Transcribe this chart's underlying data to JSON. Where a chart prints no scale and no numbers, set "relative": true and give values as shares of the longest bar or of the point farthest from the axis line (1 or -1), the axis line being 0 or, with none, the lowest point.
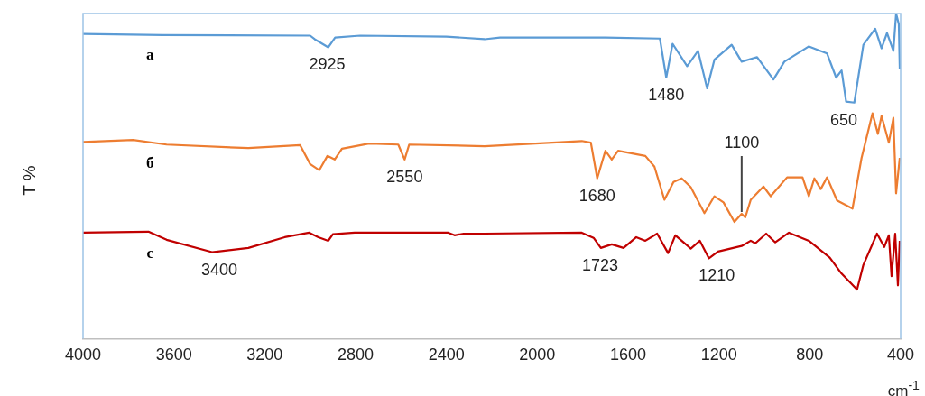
{
  "chart_data": {
    "type": "line",
    "relative": true,
    "xlabel": "cm$^{-1}$",
    "ylabel": "T %",
    "xlim": [
      4000,
      400
    ],
    "xticks": [
      4000,
      3600,
      3200,
      2800,
      2400,
      2000,
      1600,
      1200,
      800,
      400
    ],
    "grid": false,
    "legend": false,
    "marker": "none",
    "line_style": "solid",
    "series": [
      {
        "name": "a",
        "color": "#5b9bd5",
        "x": [
          4000,
          3650,
          3000,
          2980,
          2920,
          2890,
          2780,
          2400,
          2232,
          2164,
          1700,
          1460,
          1432,
          1404,
          1340,
          1292,
          1252,
          1220,
          1144,
          1100,
          1032,
          960,
          912,
          804,
          724,
          684,
          660,
          640,
          604,
          564,
          512,
          484,
          460,
          432,
          420,
          408,
          404
        ],
        "values": [
          0.937,
          0.934,
          0.932,
          0.921,
          0.896,
          0.926,
          0.932,
          0.929,
          0.921,
          0.926,
          0.926,
          0.923,
          0.803,
          0.907,
          0.838,
          0.885,
          0.77,
          0.858,
          0.904,
          0.852,
          0.866,
          0.797,
          0.852,
          0.899,
          0.877,
          0.803,
          0.825,
          0.729,
          0.726,
          0.904,
          0.953,
          0.893,
          0.94,
          0.885,
          1,
          0.967,
          0.83
        ]
      },
      {
        "name": "б",
        "color": "#ed7d31",
        "x": [
          4000,
          3780,
          3632,
          3272,
          3044,
          3000,
          2960,
          2924,
          2892,
          2860,
          2740,
          2612,
          2584,
          2564,
          2232,
          1804,
          1764,
          1736,
          1700,
          1672,
          1644,
          1524,
          1484,
          1440,
          1400,
          1364,
          1324,
          1264,
          1220,
          1180,
          1132,
          1100,
          1084,
          1060,
          1004,
          972,
          900,
          832,
          804,
          780,
          752,
          724,
          680,
          612,
          572,
          524,
          500,
          484,
          452,
          432,
          420,
          404
        ],
        "values": [
          0.605,
          0.611,
          0.597,
          0.586,
          0.595,
          0.537,
          0.518,
          0.562,
          0.551,
          0.584,
          0.6,
          0.597,
          0.551,
          0.597,
          0.592,
          0.608,
          0.603,
          0.493,
          0.578,
          0.551,
          0.578,
          0.562,
          0.529,
          0.427,
          0.482,
          0.493,
          0.466,
          0.386,
          0.438,
          0.419,
          0.359,
          0.384,
          0.373,
          0.427,
          0.468,
          0.438,
          0.496,
          0.496,
          0.438,
          0.493,
          0.46,
          0.496,
          0.425,
          0.4,
          0.556,
          0.693,
          0.63,
          0.685,
          0.603,
          0.679,
          0.447,
          0.556
        ]
      },
      {
        "name": "c",
        "color": "#c00000",
        "x": [
          4000,
          3712,
          3632,
          3432,
          3272,
          3112,
          3004,
          2964,
          2920,
          2900,
          2804,
          2392,
          2364,
          2324,
          2232,
          1804,
          1752,
          1720,
          1672,
          1620,
          1564,
          1524,
          1472,
          1424,
          1392,
          1324,
          1284,
          1244,
          1204,
          1100,
          1060,
          1040,
          992,
          952,
          892,
          804,
          712,
          660,
          592,
          564,
          504,
          472,
          452,
          440,
          424,
          412,
          404
        ],
        "values": [
          0.326,
          0.329,
          0.304,
          0.266,
          0.279,
          0.312,
          0.326,
          0.312,
          0.301,
          0.321,
          0.326,
          0.326,
          0.318,
          0.323,
          0.323,
          0.326,
          0.31,
          0.279,
          0.29,
          0.279,
          0.312,
          0.301,
          0.323,
          0.263,
          0.318,
          0.277,
          0.301,
          0.247,
          0.268,
          0.285,
          0.301,
          0.293,
          0.323,
          0.296,
          0.326,
          0.301,
          0.249,
          0.2,
          0.151,
          0.227,
          0.323,
          0.282,
          0.318,
          0.192,
          0.323,
          0.164,
          0.301
        ]
      }
    ],
    "annotations": [
      {
        "text": "2925",
        "x": 2925,
        "y": 0.896
      },
      {
        "text": "1480",
        "x": 1432,
        "y": 0.803
      },
      {
        "text": "650",
        "x": 650,
        "y": 0.726
      },
      {
        "text": "2550",
        "x": 2584,
        "y": 0.551
      },
      {
        "text": "1680",
        "x": 1736,
        "y": 0.493
      },
      {
        "text": "1100",
        "x": 1100,
        "y": 0.384
      },
      {
        "text": "3400",
        "x": 3400,
        "y": 0.266
      },
      {
        "text": "1723",
        "x": 1723,
        "y": 0.279
      },
      {
        "text": "1210",
        "x": 1210,
        "y": 0.247
      }
    ]
  }
}
